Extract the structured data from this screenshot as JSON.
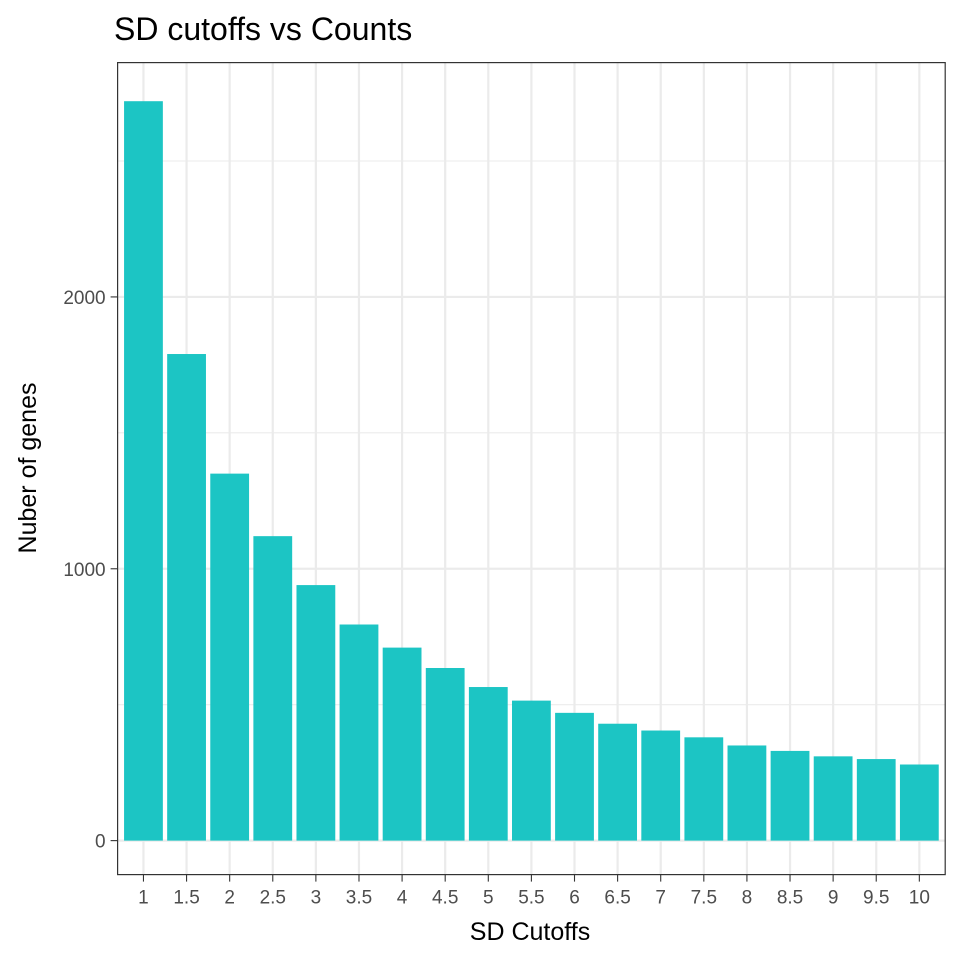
{
  "chart_data": {
    "type": "bar",
    "title": "SD cutoffs vs Counts",
    "xlabel": "SD Cutoffs",
    "ylabel": "Nuber of genes",
    "categories": [
      "1",
      "1.5",
      "2",
      "2.5",
      "3",
      "3.5",
      "4",
      "4.5",
      "5",
      "5.5",
      "6",
      "6.5",
      "7",
      "7.5",
      "8",
      "8.5",
      "9",
      "9.5",
      "10"
    ],
    "values": [
      2720,
      1790,
      1350,
      1120,
      940,
      795,
      710,
      635,
      565,
      515,
      470,
      430,
      405,
      380,
      350,
      330,
      310,
      300,
      280
    ],
    "ylim": [
      -125,
      2862
    ],
    "y_ticks": [
      0,
      1000,
      2000
    ],
    "y_tick_labels": [
      "0",
      "1000",
      "2000"
    ],
    "y_minor_ticks": [
      500,
      1500,
      2500
    ],
    "grid": true,
    "bar_color": "#1cc5c4"
  }
}
